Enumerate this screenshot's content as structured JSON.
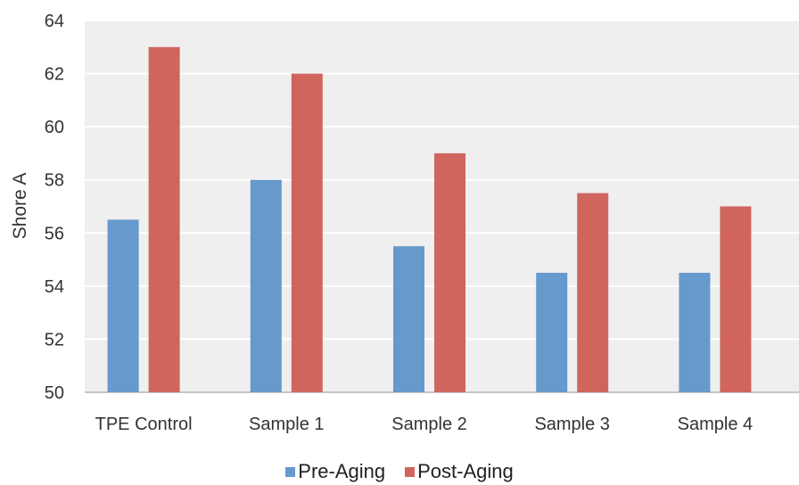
{
  "chart_data": {
    "type": "bar",
    "categories": [
      "TPE Control",
      "Sample 1",
      "Sample 2",
      "Sample 3",
      "Sample 4"
    ],
    "series": [
      {
        "name": "Pre-Aging",
        "color": "#6699cc",
        "values": [
          56.5,
          58,
          55.5,
          54.5,
          54.5
        ]
      },
      {
        "name": "Post-Aging",
        "color": "#d0655e",
        "values": [
          63,
          62,
          59,
          57.5,
          57
        ]
      }
    ],
    "ylabel": "Shore A",
    "ylim": [
      50,
      64
    ],
    "yticks": [
      "50",
      "52",
      "54",
      "56",
      "58",
      "60",
      "62",
      "64"
    ],
    "grid": true,
    "legend_position": "bottom"
  }
}
